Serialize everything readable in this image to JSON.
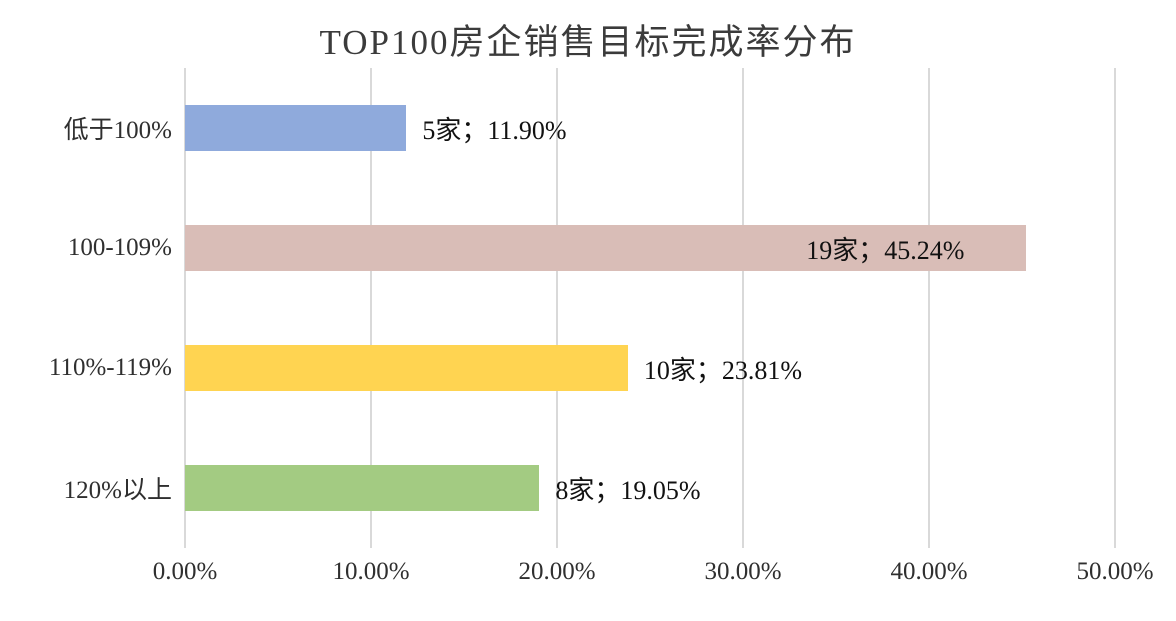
{
  "chart_data": {
    "type": "bar",
    "orientation": "horizontal",
    "title": "TOP100房企销售目标完成率分布",
    "categories": [
      "低于100%",
      "100-109%",
      "110%-119%",
      "120%以上"
    ],
    "values": [
      11.9,
      45.24,
      23.81,
      19.05
    ],
    "counts": [
      5,
      19,
      10,
      8
    ],
    "labels": [
      "5家；11.90%",
      "19家；45.24%",
      "10家；23.81%",
      "8家；19.05%"
    ],
    "label_inside": [
      false,
      true,
      false,
      false
    ],
    "bar_colors": [
      "#8FAADC",
      "#D9BDB7",
      "#FFD451",
      "#A3CB82"
    ],
    "xlim": [
      0,
      50
    ],
    "x_ticks": [
      "0.00%",
      "10.00%",
      "20.00%",
      "30.00%",
      "40.00%",
      "50.00%"
    ],
    "x_tick_values": [
      0,
      10,
      20,
      30,
      40,
      50
    ],
    "grid": true,
    "gridline_color": "#d9d9d9",
    "legend": "none",
    "background": "#ffffff"
  }
}
